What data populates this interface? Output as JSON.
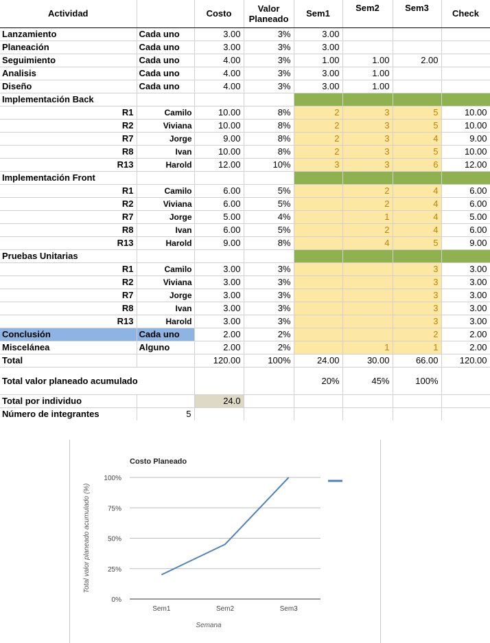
{
  "header": {
    "actividad": "Actividad",
    "costo": "Costo",
    "valor_planeado": "Valor Planeado",
    "sem1": "Sem1",
    "sem2": "Sem2",
    "sem3": "Sem3",
    "check": "Check"
  },
  "rows": [
    {
      "kind": "plain",
      "act": "Lanzamiento",
      "who": "Cada uno",
      "cost": "3.00",
      "vp": "3%",
      "s1": "3.00",
      "s2": "",
      "s3": "",
      "check": ""
    },
    {
      "kind": "plain",
      "act": "Planeación",
      "who": "Cada uno",
      "cost": "3.00",
      "vp": "3%",
      "s1": "3.00",
      "s2": "",
      "s3": "",
      "check": ""
    },
    {
      "kind": "plain",
      "act": "Seguimiento",
      "who": "Cada uno",
      "cost": "4.00",
      "vp": "3%",
      "s1": "1.00",
      "s2": "1.00",
      "s3": "2.00",
      "check": ""
    },
    {
      "kind": "plain",
      "act": "Analisis",
      "who": "Cada uno",
      "cost": "4.00",
      "vp": "3%",
      "s1": "3.00",
      "s2": "1.00",
      "s3": "",
      "check": ""
    },
    {
      "kind": "plain",
      "act": "Diseño",
      "who": "Cada uno",
      "cost": "4.00",
      "vp": "3%",
      "s1": "3.00",
      "s2": "1.00",
      "s3": "",
      "check": ""
    },
    {
      "kind": "section",
      "act": "Implementación Back"
    },
    {
      "kind": "sub",
      "act": "R1",
      "who": "Camilo",
      "cost": "10.00",
      "vp": "8%",
      "s1": "2",
      "s2": "3",
      "s3": "5",
      "check": "10.00"
    },
    {
      "kind": "sub",
      "act": "R2",
      "who": "Viviana",
      "cost": "10.00",
      "vp": "8%",
      "s1": "2",
      "s2": "3",
      "s3": "5",
      "check": "10.00"
    },
    {
      "kind": "sub",
      "act": "R7",
      "who": "Jorge",
      "cost": "9.00",
      "vp": "8%",
      "s1": "2",
      "s2": "3",
      "s3": "4",
      "check": "9.00"
    },
    {
      "kind": "sub",
      "act": "R8",
      "who": "Ivan",
      "cost": "10.00",
      "vp": "8%",
      "s1": "2",
      "s2": "3",
      "s3": "5",
      "check": "10.00"
    },
    {
      "kind": "sub",
      "act": "R13",
      "who": "Harold",
      "cost": "12.00",
      "vp": "10%",
      "s1": "3",
      "s2": "3",
      "s3": "6",
      "check": "12.00"
    },
    {
      "kind": "section",
      "act": "Implementación Front"
    },
    {
      "kind": "sub",
      "act": "R1",
      "who": "Camilo",
      "cost": "6.00",
      "vp": "5%",
      "s1": "",
      "s2": "2",
      "s3": "4",
      "check": "6.00"
    },
    {
      "kind": "sub",
      "act": "R2",
      "who": "Viviana",
      "cost": "6.00",
      "vp": "5%",
      "s1": "",
      "s2": "2",
      "s3": "4",
      "check": "6.00"
    },
    {
      "kind": "sub",
      "act": "R7",
      "who": "Jorge",
      "cost": "5.00",
      "vp": "4%",
      "s1": "",
      "s2": "1",
      "s3": "4",
      "check": "5.00"
    },
    {
      "kind": "sub",
      "act": "R8",
      "who": "Ivan",
      "cost": "6.00",
      "vp": "5%",
      "s1": "",
      "s2": "2",
      "s3": "4",
      "check": "6.00"
    },
    {
      "kind": "sub",
      "act": "R13",
      "who": "Harold",
      "cost": "9.00",
      "vp": "8%",
      "s1": "",
      "s2": "4",
      "s3": "5",
      "check": "9.00"
    },
    {
      "kind": "section",
      "act": "Pruebas Unitarias"
    },
    {
      "kind": "sub",
      "act": "R1",
      "who": "Camilo",
      "cost": "3.00",
      "vp": "3%",
      "s1": "",
      "s2": "",
      "s3": "3",
      "check": "3.00"
    },
    {
      "kind": "sub",
      "act": "R2",
      "who": "Viviana",
      "cost": "3.00",
      "vp": "3%",
      "s1": "",
      "s2": "",
      "s3": "3",
      "check": "3.00"
    },
    {
      "kind": "sub",
      "act": "R7",
      "who": "Jorge",
      "cost": "3.00",
      "vp": "3%",
      "s1": "",
      "s2": "",
      "s3": "3",
      "check": "3.00"
    },
    {
      "kind": "sub",
      "act": "R8",
      "who": "Ivan",
      "cost": "3.00",
      "vp": "3%",
      "s1": "",
      "s2": "",
      "s3": "3",
      "check": "3.00"
    },
    {
      "kind": "sub",
      "act": "R13",
      "who": "Harold",
      "cost": "3.00",
      "vp": "3%",
      "s1": "",
      "s2": "",
      "s3": "3",
      "check": "3.00"
    },
    {
      "kind": "conclusion",
      "act": "Conclusión",
      "who": "Cada uno",
      "cost": "2.00",
      "vp": "2%",
      "s1": "",
      "s2": "",
      "s3": "2",
      "check": "2.00"
    },
    {
      "kind": "misc",
      "act": "Miscelánea",
      "who": "Alguno",
      "cost": "2.00",
      "vp": "2%",
      "s1": "",
      "s2": "1",
      "s3": "1",
      "check": "2.00"
    }
  ],
  "total": {
    "label": "Total",
    "cost": "120.00",
    "vp": "100%",
    "s1": "24.00",
    "s2": "30.00",
    "s3": "66.00",
    "check": "120.00"
  },
  "acumulado": {
    "label": "Total valor planeado acumulado",
    "s1": "20%",
    "s2": "45%",
    "s3": "100%"
  },
  "por_individuo": {
    "label": "Total por individuo",
    "value": "24.0"
  },
  "integrantes": {
    "label": "Número de integrantes",
    "value": "5"
  },
  "colors": {
    "section_green": "#8fb150",
    "cell_yellow": "#fce8a2",
    "conclusion_blue": "#8eb4e3",
    "individuo_tan": "#ddd9c4",
    "line_blue": "#4f81bd"
  },
  "chart_data": {
    "type": "line",
    "title": "Costo Planeado",
    "xlabel": "Semana",
    "ylabel": "Total valor planeado acumulado (%)",
    "categories": [
      "Sem1",
      "Sem2",
      "Sem3"
    ],
    "series": [
      {
        "values": [
          20,
          45,
          100
        ]
      }
    ],
    "ylim": [
      0,
      100
    ],
    "yticks": [
      "0%",
      "25%",
      "50%",
      "75%",
      "100%"
    ],
    "grid": true,
    "legend": "right"
  }
}
